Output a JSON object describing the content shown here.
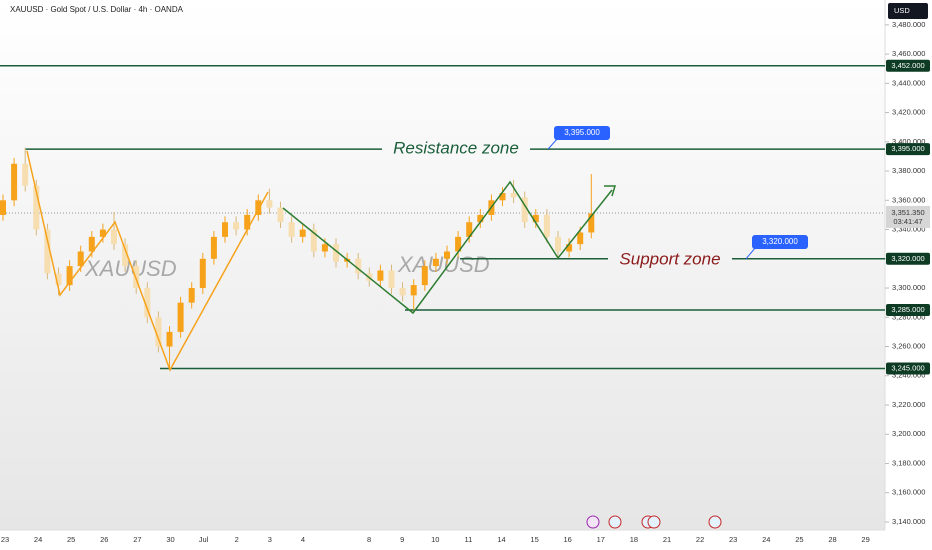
{
  "chart_data": {
    "type": "candlestick",
    "title": "XAUUSD · Gold Spot / U.S. Dollar · 4h · OANDA",
    "currency": "USD",
    "watermarks": [
      "XAUUSD",
      "XAUUSD"
    ],
    "annotations": {
      "resistance": "Resistance zone",
      "support": "Support zone"
    },
    "callouts": [
      {
        "value": 3395,
        "label": "3,395.000"
      },
      {
        "value": 3320,
        "label": "3,320.000"
      }
    ],
    "current_price": {
      "value": 3351.35,
      "label": "3,351.350",
      "countdown": "03:41:47"
    },
    "levels": [
      {
        "value": 3452,
        "label": "3,452.000"
      },
      {
        "value": 3395,
        "label": "3,395.000"
      },
      {
        "value": 3320,
        "label": "3,320.000"
      },
      {
        "value": 3285,
        "label": "3,285.000"
      },
      {
        "value": 3245,
        "label": "3,245.000"
      }
    ],
    "categories": [
      "23",
      "24",
      "25",
      "26",
      "27",
      "30",
      "Jul",
      "2",
      "3",
      "4",
      null,
      "8",
      "9",
      "10",
      "11",
      "14",
      "15",
      "16",
      "17",
      "18",
      "21",
      "22",
      "23",
      "24",
      "25",
      "28",
      "29"
    ],
    "ylim": [
      3134.5,
      3497
    ],
    "yticks": [
      {
        "value": 3140,
        "label": "3,140.000"
      },
      {
        "value": 3160,
        "label": "3,160.000"
      },
      {
        "value": 3180,
        "label": "3,180.000"
      },
      {
        "value": 3200,
        "label": "3,200.000"
      },
      {
        "value": 3220,
        "label": "3,220.000"
      },
      {
        "value": 3240,
        "label": "3,240.000"
      },
      {
        "value": 3260,
        "label": "3,260.000"
      },
      {
        "value": 3280,
        "label": "3,280.000"
      },
      {
        "value": 3300,
        "label": "3,300.000"
      },
      {
        "value": 3320,
        "label": "3,320.000"
      },
      {
        "value": 3340,
        "label": "3,340.000"
      },
      {
        "value": 3360,
        "label": "3,360.000"
      },
      {
        "value": 3380,
        "label": "3,380.000"
      },
      {
        "value": 3400,
        "label": "3,400.000"
      },
      {
        "value": 3420,
        "label": "3,420.000"
      },
      {
        "value": 3440,
        "label": "3,440.000"
      },
      {
        "value": 3460,
        "label": "3,460.000"
      },
      {
        "value": 3480,
        "label": "3,480.000"
      }
    ],
    "up_color": "#f7a21b",
    "down_color": "#f6deb0",
    "level_color": "#1b5e3a",
    "candles": {
      "open": [
        3350,
        3360,
        3385,
        3370,
        3340,
        3310,
        3302,
        3315,
        3325,
        3335,
        3340,
        3330,
        3315,
        3300,
        3280,
        3260,
        3270,
        3290,
        3300,
        3320,
        3335,
        3345,
        3340,
        3350,
        3360,
        3355,
        3345,
        3335,
        3340,
        3325,
        3330,
        3318,
        3320,
        3310,
        3305,
        3312,
        3300,
        3295,
        3302,
        3315,
        3320,
        3325,
        3335,
        3345,
        3350,
        3360,
        3365,
        3362,
        3345,
        3350,
        3335,
        3325,
        3330,
        3338
      ],
      "high": [
        3364,
        3389,
        3396,
        3374,
        3344,
        3314,
        3319,
        3329,
        3339,
        3344,
        3352,
        3334,
        3319,
        3304,
        3284,
        3274,
        3294,
        3304,
        3324,
        3339,
        3349,
        3349,
        3354,
        3364,
        3368,
        3359,
        3349,
        3344,
        3344,
        3334,
        3334,
        3324,
        3324,
        3314,
        3316,
        3316,
        3304,
        3306,
        3319,
        3324,
        3329,
        3339,
        3349,
        3354,
        3364,
        3369,
        3374,
        3366,
        3354,
        3354,
        3339,
        3334,
        3342,
        3378
      ],
      "low": [
        3346,
        3356,
        3366,
        3336,
        3306,
        3295,
        3298,
        3311,
        3321,
        3331,
        3326,
        3311,
        3296,
        3276,
        3256,
        3245,
        3266,
        3286,
        3296,
        3316,
        3331,
        3336,
        3336,
        3346,
        3351,
        3341,
        3331,
        3331,
        3321,
        3321,
        3314,
        3314,
        3306,
        3301,
        3301,
        3296,
        3291,
        3285,
        3298,
        3311,
        3316,
        3321,
        3331,
        3341,
        3346,
        3356,
        3358,
        3341,
        3341,
        3331,
        3320,
        3321,
        3326,
        3334
      ],
      "close": [
        3360,
        3385,
        3370,
        3340,
        3310,
        3302,
        3315,
        3325,
        3335,
        3340,
        3330,
        3315,
        3300,
        3280,
        3260,
        3270,
        3290,
        3300,
        3320,
        3335,
        3345,
        3340,
        3350,
        3360,
        3355,
        3345,
        3335,
        3340,
        3325,
        3330,
        3318,
        3320,
        3310,
        3305,
        3312,
        3300,
        3295,
        3302,
        3315,
        3320,
        3325,
        3335,
        3345,
        3350,
        3360,
        3365,
        3362,
        3345,
        3350,
        3335,
        3325,
        3330,
        3338,
        3351
      ]
    }
  }
}
